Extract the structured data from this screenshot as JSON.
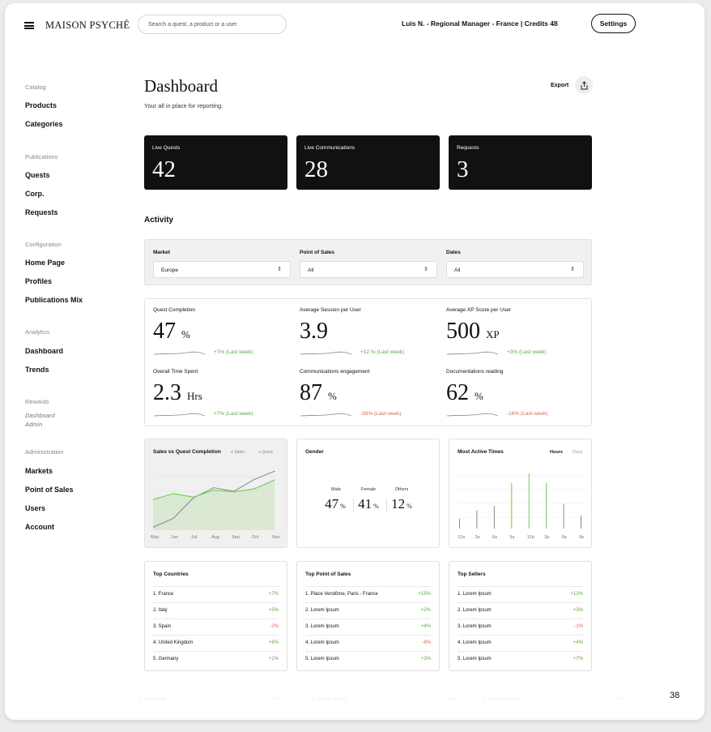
{
  "brand": "MAISON PSYCHÉ",
  "search": {
    "placeholder": "Search a quest, a product or a user"
  },
  "user": {
    "info": "Luis N.  -  Regional Manager  -  France  |  Credits 48",
    "settings": "Settings"
  },
  "sidebar": {
    "catalog": "Catalog",
    "products": "Products",
    "categories": "Categories",
    "publications": "Publications",
    "quests": "Quests",
    "corp": "Corp.",
    "requests": "Requests",
    "configuration": "Configuration",
    "home_page": "Home Page",
    "profiles": "Profiles",
    "publications_mix": "Publications Mix",
    "analytics": "Analytics",
    "dashboard": "Dashboard",
    "trends": "Trends",
    "rewards": "Rewards",
    "rewards_dashboard": "Dashboard",
    "rewards_admin": "Admin",
    "administration": "Administration",
    "markets": "Markets",
    "point_of_sales": "Point of Sales",
    "users": "Users",
    "account": "Account"
  },
  "page": {
    "title": "Dashboard",
    "subtitle": "Your all in place for reporting.",
    "export": "Export"
  },
  "kpis": [
    {
      "label": "Live Quests",
      "value": "42"
    },
    {
      "label": "Live Communications",
      "value": "28"
    },
    {
      "label": "Requests",
      "value": "3"
    }
  ],
  "activity": {
    "title": "Activity"
  },
  "filters": [
    {
      "label": "Market",
      "value": "Europe"
    },
    {
      "label": "Point of Sales",
      "value": "All"
    },
    {
      "label": "Dates",
      "value": "All"
    }
  ],
  "metrics": [
    {
      "label": "Quest Completion",
      "value": "47",
      "unit": "%",
      "change": "+7% (Last week)",
      "trend": "up"
    },
    {
      "label": "Average Session per User",
      "value": "3.9",
      "unit": "",
      "change": "+12 % (Last week)",
      "trend": "up"
    },
    {
      "label": "Average XP Score per User",
      "value": "500",
      "unit": "XP",
      "change": "+3% (Last week)",
      "trend": "up"
    },
    {
      "label": "Overall Time Spent",
      "value": "2.3",
      "unit": "Hrs",
      "change": "+7% (Last week)",
      "trend": "up"
    },
    {
      "label": "Communications engagement",
      "value": "87",
      "unit": "%",
      "change": "-26% (Last week)",
      "trend": "down"
    },
    {
      "label": "Documentations reading",
      "value": "62",
      "unit": "%",
      "change": "-16% (Last week)",
      "trend": "down"
    }
  ],
  "sales_chart": {
    "title": "Sales vs Quest Completion",
    "legend_sales": "Sales",
    "legend_quest": "Quest",
    "months": [
      "May",
      "Jun",
      "Jul",
      "Aug",
      "Sep",
      "Oct",
      "Nov"
    ]
  },
  "chart_data": [
    {
      "type": "line",
      "title": "Sales vs Quest Completion",
      "x": [
        "May",
        "Jun",
        "Jul",
        "Aug",
        "Sep",
        "Oct",
        "Nov"
      ],
      "series": [
        {
          "name": "Sales",
          "values": [
            5,
            20,
            55,
            72,
            66,
            86,
            100
          ]
        },
        {
          "name": "Quest",
          "values": [
            52,
            62,
            56,
            68,
            65,
            70,
            85
          ]
        }
      ],
      "ylim": [
        0,
        110
      ]
    },
    {
      "type": "bar",
      "title": "Most Active Times",
      "categories": [
        "12a",
        "3a",
        "6a",
        "9a",
        "12p",
        "3p",
        "6p",
        "9p"
      ],
      "values": [
        15,
        28,
        35,
        70,
        85,
        70,
        38,
        20
      ],
      "ylim": [
        0,
        100
      ]
    }
  ],
  "gender": {
    "title": "Gender",
    "groups": [
      {
        "label": "Male",
        "value": "47",
        "unit": "%"
      },
      {
        "label": "Female",
        "value": "41",
        "unit": "%"
      },
      {
        "label": "Others",
        "value": "12",
        "unit": "%"
      }
    ]
  },
  "active_times": {
    "title": "Most Active Times",
    "tab_hours": "Hours",
    "tab_days": "Days",
    "ticks": [
      "12a",
      "3a",
      "6a",
      "9a",
      "12p",
      "3p",
      "6p",
      "9p"
    ]
  },
  "tables": [
    {
      "title": "Top Countries",
      "rows": [
        {
          "name": "1. France",
          "change": "+7%",
          "trend": "up"
        },
        {
          "name": "2. Italy",
          "change": "+5%",
          "trend": "up"
        },
        {
          "name": "3. Spain",
          "change": "-2%",
          "trend": "down"
        },
        {
          "name": "4. United Kingdom",
          "change": "+6%",
          "trend": "up"
        },
        {
          "name": "5. Germany",
          "change": "+1%",
          "trend": "up"
        }
      ]
    },
    {
      "title": "Top Point of Sales",
      "rows": [
        {
          "name": "1. Place Vendôme, Paris - France",
          "change": "+15%",
          "trend": "up"
        },
        {
          "name": "2. Lorem Ipsum",
          "change": "+2%",
          "trend": "up"
        },
        {
          "name": "3. Lorem Ipsum",
          "change": "+4%",
          "trend": "up"
        },
        {
          "name": "4. Lorem Ipsum",
          "change": "-8%",
          "trend": "down"
        },
        {
          "name": "5. Lorem Ipsum",
          "change": "+3%",
          "trend": "up"
        }
      ]
    },
    {
      "title": "Top Sellers",
      "rows": [
        {
          "name": "1. Lorem Ipsum",
          "change": "+12%",
          "trend": "up"
        },
        {
          "name": "2. Lorem Ipsum",
          "change": "+3%",
          "trend": "up"
        },
        {
          "name": "3. Lorem Ipsum",
          "change": "-1%",
          "trend": "down"
        },
        {
          "name": "4. Lorem Ipsum",
          "change": "+4%",
          "trend": "up"
        },
        {
          "name": "5. Lorem Ipsum",
          "change": "+7%",
          "trend": "up"
        }
      ]
    }
  ],
  "ghost": [
    "4. Germany",
    "-2%",
    "4. Lorem Ipsum",
    "-5%",
    "4. Lorem Ipsum",
    "-3%"
  ],
  "page_number": "38"
}
